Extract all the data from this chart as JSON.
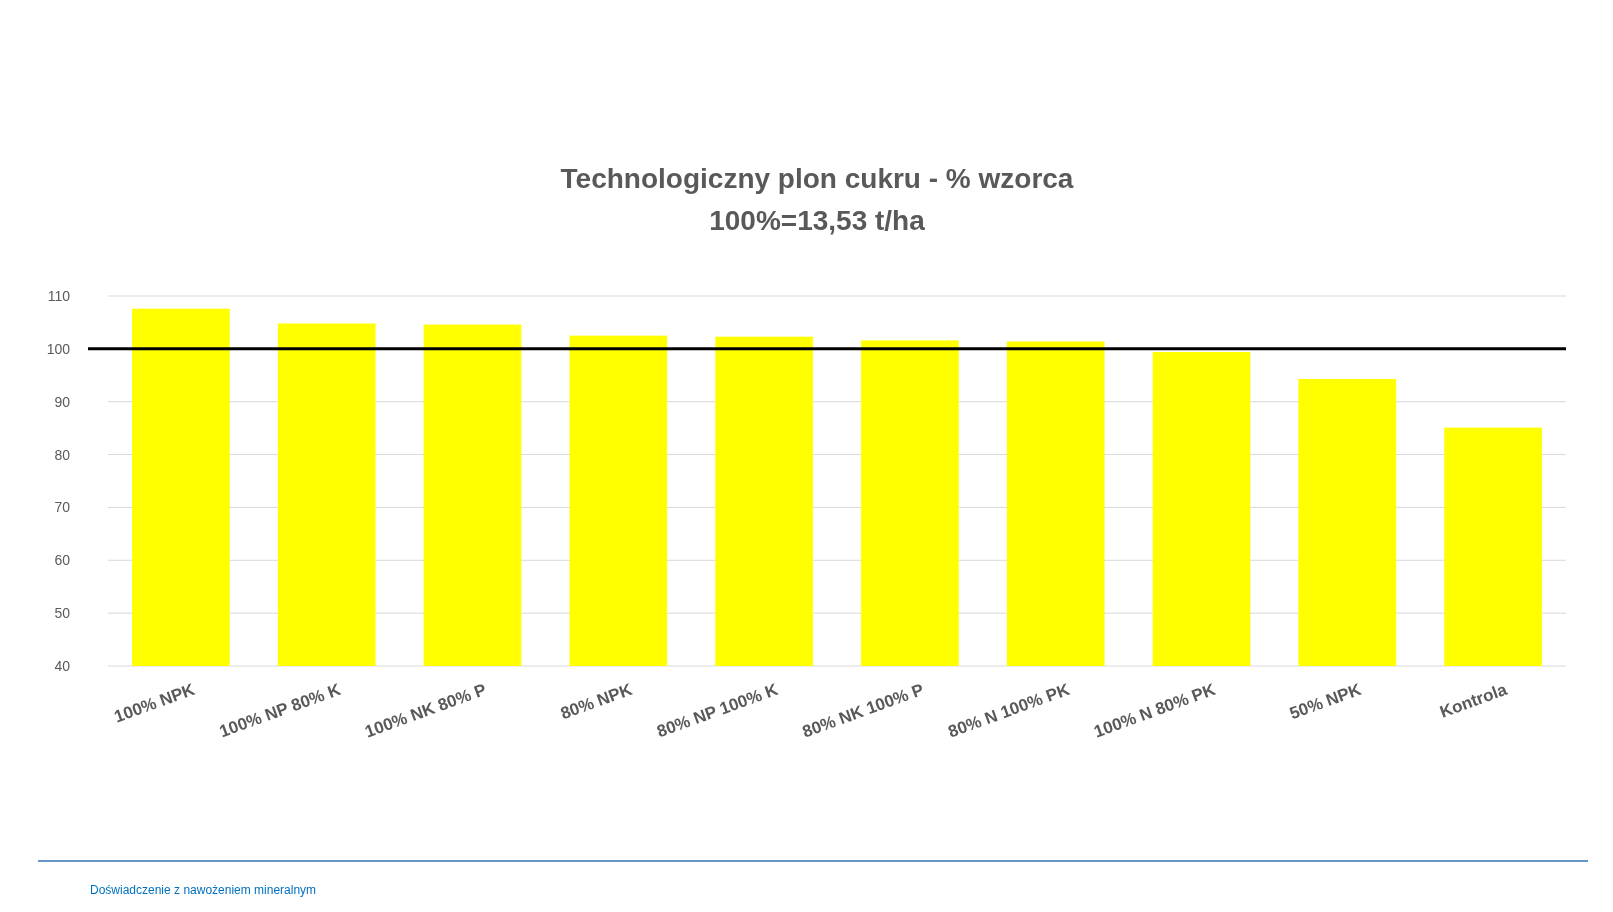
{
  "chart_data": {
    "type": "bar",
    "title": "Technologiczny plon cukru - % wzorca",
    "subtitle": "100%=13,53 t/ha",
    "categories": [
      "100% NPK",
      "100% NP 80% K",
      "100% NK 80% P",
      "80% NPK",
      "80% NP 100% K",
      "80% NK 100% P",
      "80% N 100% PK",
      "100% N 80% PK",
      "50% NPK",
      "Kontrola"
    ],
    "values": [
      107.6,
      104.8,
      104.6,
      102.5,
      102.3,
      101.6,
      101.4,
      99.4,
      94.3,
      85.1
    ],
    "color": "#ffff00",
    "ylim": [
      40,
      110
    ],
    "yticks": [
      40,
      50,
      60,
      70,
      80,
      90,
      100,
      110
    ],
    "grid": "y",
    "ref_lines": [
      {
        "axis": "y",
        "value": 100,
        "color": "#000000"
      }
    ],
    "annotations": [
      "Doświadczenie z nawożeniem mineralnym"
    ]
  }
}
